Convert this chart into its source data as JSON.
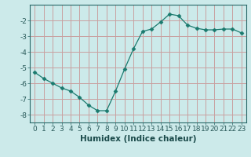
{
  "x": [
    0,
    1,
    2,
    3,
    4,
    5,
    6,
    7,
    8,
    9,
    10,
    11,
    12,
    13,
    14,
    15,
    16,
    17,
    18,
    19,
    20,
    21,
    22,
    23
  ],
  "y": [
    -5.3,
    -5.7,
    -6.0,
    -6.3,
    -6.5,
    -6.9,
    -7.4,
    -7.75,
    -7.75,
    -6.5,
    -5.1,
    -3.8,
    -2.7,
    -2.55,
    -2.1,
    -1.6,
    -1.7,
    -2.3,
    -2.5,
    -2.6,
    -2.6,
    -2.55,
    -2.55,
    -2.8
  ],
  "line_color": "#1a7a6e",
  "marker": "D",
  "marker_size": 2.5,
  "bg_color": "#cceaea",
  "grid_color": "#c8a0a0",
  "xlabel": "Humidex (Indice chaleur)",
  "xlim": [
    -0.5,
    23.5
  ],
  "ylim": [
    -8.5,
    -1.0
  ],
  "yticks": [
    -8,
    -7,
    -6,
    -5,
    -4,
    -3,
    -2
  ],
  "xtick_labels": [
    "0",
    "1",
    "2",
    "3",
    "4",
    "5",
    "6",
    "7",
    "8",
    "9",
    "10",
    "11",
    "12",
    "13",
    "14",
    "15",
    "16",
    "17",
    "18",
    "19",
    "20",
    "21",
    "22",
    "23"
  ],
  "label_fontsize": 7.5,
  "tick_fontsize": 6.5
}
